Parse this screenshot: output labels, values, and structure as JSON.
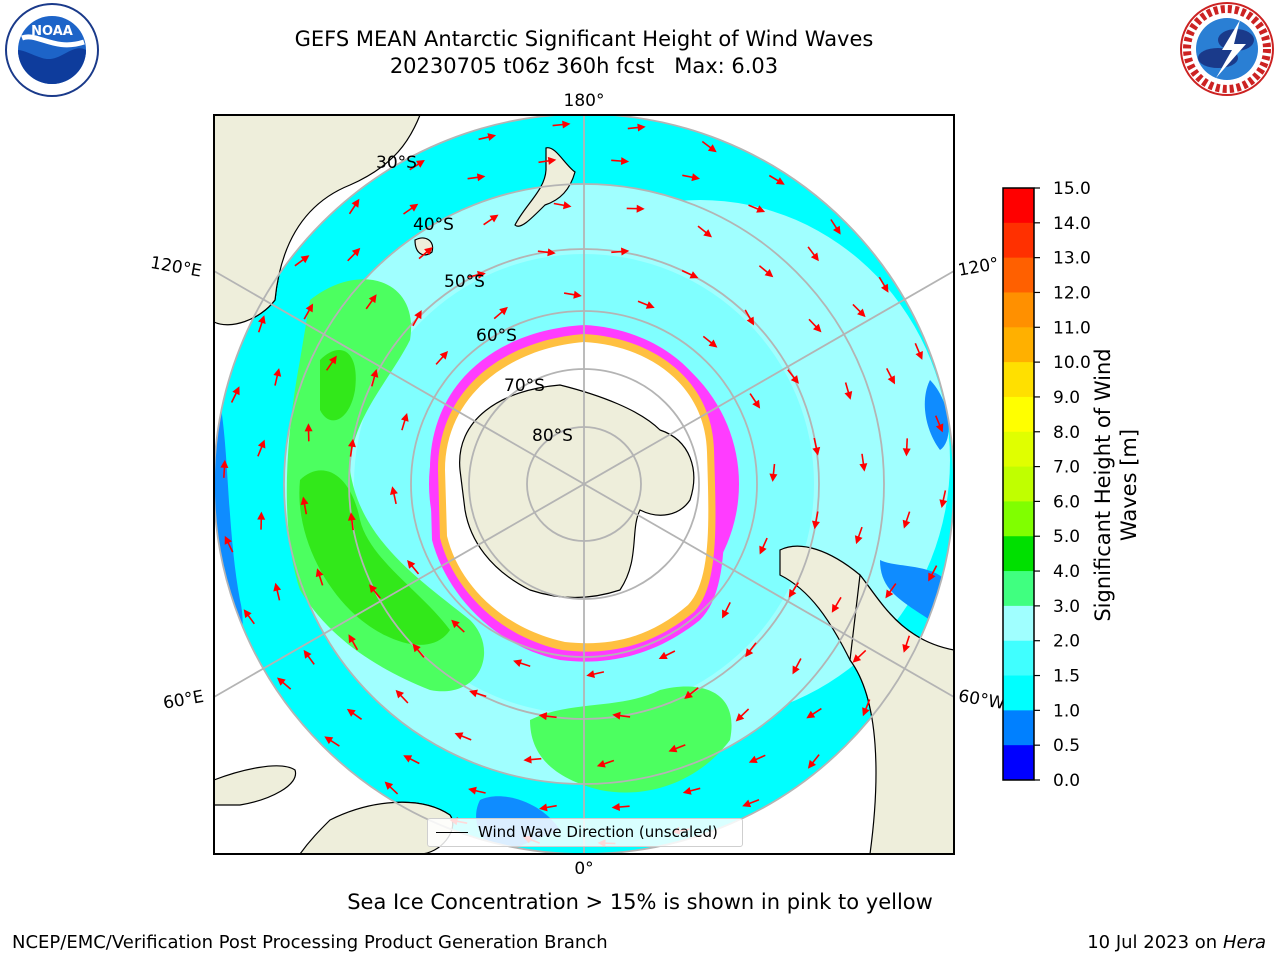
{
  "header": {
    "title": "GEFS MEAN Antarctic Significant Height of Wind Waves",
    "subtitle": "20230705 t06z 360h fcst   Max: 6.03"
  },
  "logos": {
    "noaa": {
      "name": "noaa-logo",
      "text": "NOAA"
    },
    "nws": {
      "name": "nws-logo",
      "text": "NATIONAL WEATHER SERVICE"
    }
  },
  "map": {
    "longitude_labels": {
      "top": "180°",
      "bottom": "0°",
      "left_upper": "120°E",
      "left_lower": "60°E",
      "right_upper": "120°",
      "right_lower": "60°W"
    },
    "latitude_labels": [
      "30°S",
      "40°S",
      "50°S",
      "60°S",
      "70°S",
      "80°S"
    ],
    "legend": "Wind Wave Direction (unscaled)",
    "colors": {
      "land": "#eeeedb",
      "ice": "#ffffff",
      "ocean_low": "#00ffff",
      "ocean_mid": "#a0ffff",
      "green": "#4cff60",
      "green_dark": "#32e81a",
      "blue": "#0f8cff",
      "arrow": "#ff0000",
      "ice_edge": "#ff3cff"
    }
  },
  "colorbar": {
    "label": "Significant Height of Wind Waves [m]",
    "ticks": [
      "15.0",
      "14.0",
      "13.0",
      "12.0",
      "11.0",
      "10.0",
      "9.0",
      "8.0",
      "7.0",
      "6.0",
      "5.0",
      "4.0",
      "3.0",
      "2.0",
      "1.5",
      "1.0",
      "0.5",
      "0.0"
    ],
    "colors": [
      "#ff0000",
      "#ff3000",
      "#ff6000",
      "#ff9000",
      "#ffb000",
      "#ffe000",
      "#ffff00",
      "#e0ff00",
      "#c0ff00",
      "#80ff00",
      "#00e000",
      "#40ff80",
      "#a0ffff",
      "#40ffff",
      "#00ffff",
      "#0080ff",
      "#0000ff"
    ]
  },
  "footer": {
    "caption": "Sea Ice Concentration > 15% is shown in pink to yellow",
    "left": "NCEP/EMC/Verification Post Processing Product Generation Branch",
    "right_date": "10 Jul 2023 on ",
    "right_machine": "Hera"
  }
}
